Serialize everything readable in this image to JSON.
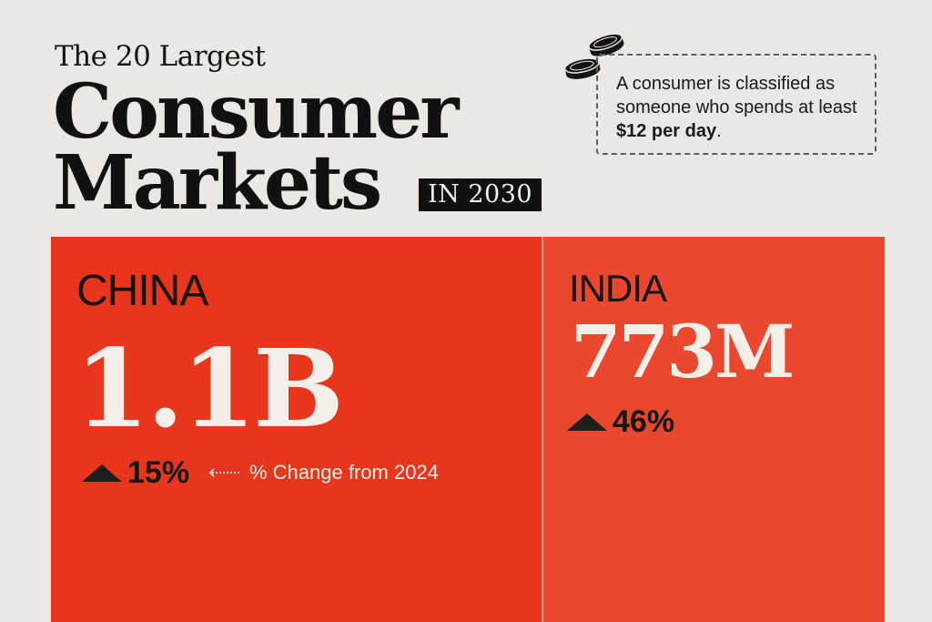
{
  "header": {
    "line_small": "The 20 Largest",
    "line_big_1": "Consumer",
    "line_big_2": "Markets",
    "year_badge": "IN 2030"
  },
  "note": {
    "text_before": "A consumer is classified as someone who spends at least ",
    "text_bold": "$12 per day",
    "text_after": ".",
    "icon": "coins-icon"
  },
  "annotation": {
    "text": "% Change from 2024"
  },
  "colors": {
    "background": "#ebe7e3",
    "china_tile": "#e8361c",
    "india_tile": "#e9472e",
    "tile_text": "#f4efe9"
  },
  "chart_data": {
    "type": "treemap",
    "title": "The 20 Largest Consumer Markets IN 2030",
    "series": [
      {
        "name": "CHINA",
        "value_label": "1.1B",
        "value": 1100000000,
        "change_label": "15%",
        "change_pct": 15
      },
      {
        "name": "INDIA",
        "value_label": "773M",
        "value": 773000000,
        "change_label": "46%",
        "change_pct": 46
      }
    ]
  }
}
